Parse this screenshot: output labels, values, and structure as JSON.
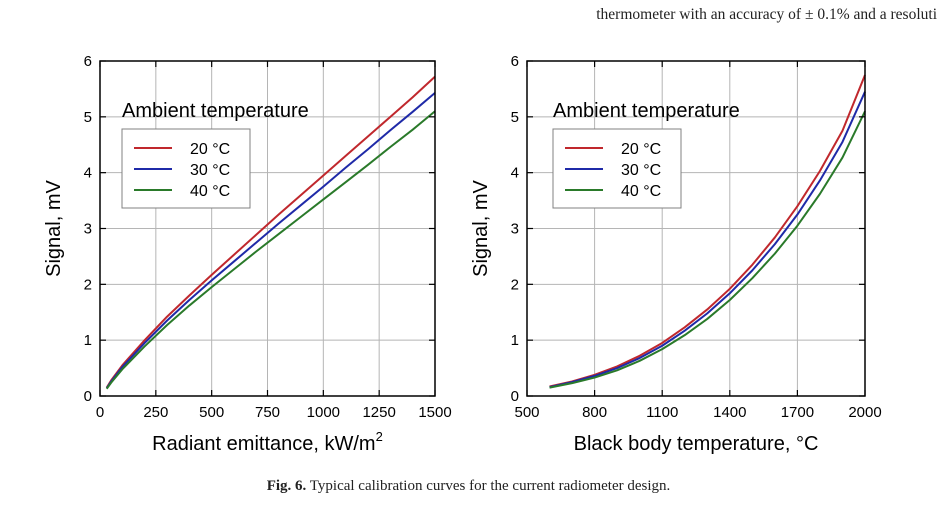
{
  "page": {
    "top_text": "thermometer with an accuracy of ± 0.1% and a resoluti",
    "caption_label": "Fig. 6.",
    "caption_text": " Typical calibration curves for the current radiometer design."
  },
  "chart_data": [
    {
      "type": "line",
      "title": "",
      "xlabel": "Radiant emittance, kW/m",
      "xlabel_superscript": "2",
      "ylabel": "Signal, mV",
      "xlim": [
        0,
        1500
      ],
      "ylim": [
        0,
        6
      ],
      "xticks": [
        0,
        250,
        500,
        750,
        1000,
        1250,
        1500
      ],
      "yticks": [
        0,
        1,
        2,
        3,
        4,
        5,
        6
      ],
      "grid": true,
      "legend": {
        "title": "Ambient temperature",
        "placement": "top-left"
      },
      "series": [
        {
          "name": "20 °C",
          "color": "#c0282d",
          "x": [
            30,
            50,
            100,
            200,
            300,
            400,
            500,
            600,
            700,
            800,
            900,
            1000,
            1100,
            1200,
            1300,
            1400,
            1500
          ],
          "y": [
            0.15,
            0.28,
            0.55,
            1.0,
            1.42,
            1.8,
            2.17,
            2.53,
            2.89,
            3.25,
            3.6,
            3.95,
            4.3,
            4.65,
            5.0,
            5.35,
            5.72
          ]
        },
        {
          "name": "30 °C",
          "color": "#1f2aa8",
          "x": [
            30,
            50,
            100,
            200,
            300,
            400,
            500,
            600,
            700,
            800,
            900,
            1000,
            1100,
            1200,
            1300,
            1400,
            1500
          ],
          "y": [
            0.14,
            0.26,
            0.52,
            0.95,
            1.35,
            1.72,
            2.07,
            2.41,
            2.75,
            3.09,
            3.42,
            3.75,
            4.09,
            4.42,
            4.76,
            5.09,
            5.43
          ]
        },
        {
          "name": "40 °C",
          "color": "#2a7a2a",
          "x": [
            30,
            50,
            100,
            200,
            300,
            400,
            500,
            600,
            700,
            800,
            900,
            1000,
            1100,
            1200,
            1300,
            1400,
            1500
          ],
          "y": [
            0.13,
            0.24,
            0.48,
            0.89,
            1.27,
            1.62,
            1.95,
            2.27,
            2.59,
            2.9,
            3.21,
            3.52,
            3.83,
            4.14,
            4.46,
            4.77,
            5.1
          ]
        }
      ]
    },
    {
      "type": "line",
      "title": "",
      "xlabel": "Black body temperature, °C",
      "ylabel": "Signal, mV",
      "xlim": [
        500,
        2000
      ],
      "ylim": [
        0,
        6
      ],
      "xticks": [
        500,
        800,
        1100,
        1400,
        1700,
        2000
      ],
      "yticks": [
        0,
        1,
        2,
        3,
        4,
        5,
        6
      ],
      "grid": true,
      "legend": {
        "title": "Ambient temperature",
        "placement": "top-left"
      },
      "series": [
        {
          "name": "20 °C",
          "color": "#c0282d",
          "x": [
            600,
            700,
            800,
            900,
            1000,
            1100,
            1200,
            1300,
            1400,
            1500,
            1600,
            1700,
            1800,
            1900,
            2000
          ],
          "y": [
            0.17,
            0.26,
            0.38,
            0.53,
            0.72,
            0.95,
            1.23,
            1.55,
            1.92,
            2.35,
            2.84,
            3.4,
            4.03,
            4.75,
            5.75
          ]
        },
        {
          "name": "30 °C",
          "color": "#1f2aa8",
          "x": [
            600,
            700,
            800,
            900,
            1000,
            1100,
            1200,
            1300,
            1400,
            1500,
            1600,
            1700,
            1800,
            1900,
            2000
          ],
          "y": [
            0.16,
            0.25,
            0.36,
            0.5,
            0.68,
            0.9,
            1.17,
            1.48,
            1.84,
            2.25,
            2.72,
            3.25,
            3.86,
            4.55,
            5.45
          ]
        },
        {
          "name": "40 °C",
          "color": "#2a7a2a",
          "x": [
            600,
            700,
            800,
            900,
            1000,
            1100,
            1200,
            1300,
            1400,
            1500,
            1600,
            1700,
            1800,
            1900,
            2000
          ],
          "y": [
            0.15,
            0.23,
            0.33,
            0.46,
            0.63,
            0.84,
            1.09,
            1.38,
            1.72,
            2.11,
            2.55,
            3.05,
            3.62,
            4.27,
            5.1
          ]
        }
      ]
    }
  ]
}
